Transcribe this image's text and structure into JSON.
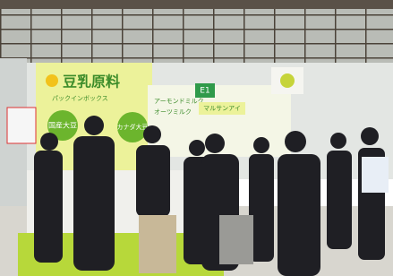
{
  "signs": {
    "main": "豆乳原料",
    "sub": "パックインボックス",
    "badge1": "国産大豆",
    "badge2": "カナダ大豆",
    "side1": "アーモンドミルク",
    "side2": "オーツミルク",
    "brand": "マルサンアイ",
    "booth": "E1"
  }
}
